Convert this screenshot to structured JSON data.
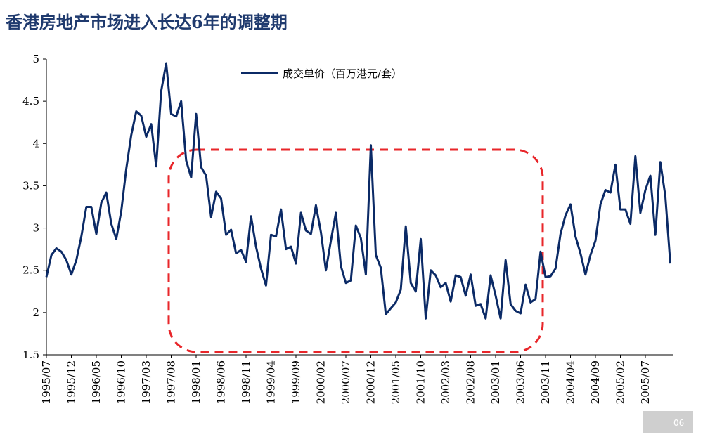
{
  "chart_data": {
    "type": "line",
    "title": "香港房地产市场进入长达6年的调整期",
    "categories": [
      "1995/07",
      null,
      null,
      null,
      null,
      "1995/12",
      null,
      null,
      null,
      null,
      "1996/05",
      null,
      null,
      null,
      null,
      "1996/10",
      null,
      null,
      null,
      null,
      "1997/03",
      null,
      null,
      null,
      null,
      "1997/08",
      null,
      null,
      null,
      null,
      "1998/01",
      null,
      null,
      null,
      null,
      "1998/06",
      null,
      null,
      null,
      null,
      "1998/11",
      null,
      null,
      null,
      null,
      "1999/04",
      null,
      null,
      null,
      null,
      "1999/09",
      null,
      null,
      null,
      null,
      "2000/02",
      null,
      null,
      null,
      null,
      "2000/07",
      null,
      null,
      null,
      null,
      "2000/12",
      null,
      null,
      null,
      null,
      "2001/05",
      null,
      null,
      null,
      null,
      "2001/10",
      null,
      null,
      null,
      null,
      "2002/03",
      null,
      null,
      null,
      null,
      "2002/08",
      null,
      null,
      null,
      null,
      "2003/01",
      null,
      null,
      null,
      null,
      "2003/06",
      null,
      null,
      null,
      null,
      "2003/11",
      null,
      null,
      null,
      null,
      "2004/04",
      null,
      null,
      null,
      null,
      "2004/09",
      null,
      null,
      null,
      null,
      "2005/02",
      null,
      null,
      null,
      null,
      "2005/07",
      null,
      null,
      null,
      null,
      null
    ],
    "series": [
      {
        "name": "成交单价（百万港元/套）",
        "color": "#0b2a66",
        "values": [
          2.42,
          2.68,
          2.76,
          2.72,
          2.62,
          2.45,
          2.62,
          2.9,
          3.25,
          3.25,
          2.93,
          3.3,
          3.42,
          3.05,
          2.87,
          3.2,
          3.7,
          4.1,
          4.38,
          4.33,
          4.08,
          4.23,
          3.73,
          4.62,
          4.95,
          4.35,
          4.32,
          4.5,
          3.8,
          3.6,
          4.35,
          3.72,
          3.62,
          3.13,
          3.43,
          3.35,
          2.92,
          2.98,
          2.7,
          2.74,
          2.6,
          3.14,
          2.78,
          2.52,
          2.32,
          2.92,
          2.9,
          3.22,
          2.75,
          2.78,
          2.58,
          3.18,
          2.97,
          2.93,
          3.27,
          2.95,
          2.5,
          2.85,
          3.18,
          2.55,
          2.35,
          2.38,
          3.03,
          2.88,
          2.45,
          3.98,
          2.68,
          2.53,
          1.98,
          2.05,
          2.12,
          2.27,
          3.02,
          2.35,
          2.25,
          2.87,
          1.93,
          2.5,
          2.44,
          2.3,
          2.35,
          2.13,
          2.44,
          2.42,
          2.2,
          2.45,
          2.08,
          2.1,
          1.93,
          2.44,
          2.2,
          1.93,
          2.62,
          2.1,
          2.02,
          1.99,
          2.33,
          2.12,
          2.16,
          2.72,
          2.42,
          2.43,
          2.52,
          2.93,
          3.15,
          3.28,
          2.9,
          2.7,
          2.45,
          2.68,
          2.85,
          3.28,
          3.45,
          3.42,
          3.75,
          3.22,
          3.22,
          3.05,
          3.85,
          3.18,
          3.45,
          3.62,
          2.92,
          3.78,
          3.38,
          2.58
        ]
      }
    ],
    "ylim": [
      1.5,
      5
    ],
    "yticks": [
      1.5,
      2,
      2.5,
      3,
      3.5,
      4,
      4.5,
      5
    ],
    "grid": false,
    "legend": "top"
  },
  "page_number": "06"
}
